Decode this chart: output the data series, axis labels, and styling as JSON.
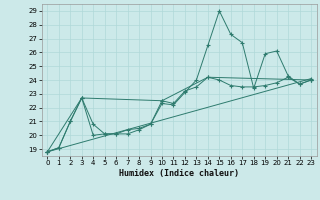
{
  "title": "",
  "xlabel": "Humidex (Indice chaleur)",
  "ylabel": "",
  "xlim": [
    -0.5,
    23.5
  ],
  "ylim": [
    18.5,
    29.5
  ],
  "xticks": [
    0,
    1,
    2,
    3,
    4,
    5,
    6,
    7,
    8,
    9,
    10,
    11,
    12,
    13,
    14,
    15,
    16,
    17,
    18,
    19,
    20,
    21,
    22,
    23
  ],
  "yticks": [
    19,
    20,
    21,
    22,
    23,
    24,
    25,
    26,
    27,
    28,
    29
  ],
  "bg_color": "#cce9e9",
  "line_color": "#2e7b6e",
  "grid_color": "#b0d8d8",
  "lines": [
    {
      "x": [
        0,
        1,
        2,
        3,
        4,
        5,
        6,
        7,
        8,
        9,
        10,
        11,
        12,
        13,
        14,
        15,
        16,
        17,
        18,
        19,
        20,
        21,
        22,
        23
      ],
      "y": [
        18.8,
        19.1,
        21.0,
        22.7,
        20.0,
        20.1,
        20.1,
        20.4,
        20.5,
        20.8,
        22.3,
        22.2,
        23.1,
        24.0,
        26.5,
        29.0,
        27.3,
        26.7,
        23.4,
        25.9,
        26.1,
        24.3,
        23.7,
        24.0
      ]
    },
    {
      "x": [
        0,
        1,
        2,
        3,
        4,
        5,
        6,
        7,
        8,
        9,
        10,
        11,
        12,
        13,
        14,
        15,
        16,
        17,
        18,
        19,
        20,
        21,
        22,
        23
      ],
      "y": [
        18.8,
        19.1,
        21.0,
        22.7,
        20.8,
        20.1,
        20.1,
        20.1,
        20.4,
        20.8,
        22.5,
        22.3,
        23.2,
        23.5,
        24.2,
        24.0,
        23.6,
        23.5,
        23.5,
        23.6,
        23.8,
        24.2,
        23.7,
        24.0
      ]
    },
    {
      "x": [
        0,
        23
      ],
      "y": [
        18.8,
        24.1
      ]
    },
    {
      "x": [
        0,
        3,
        10,
        14,
        23
      ],
      "y": [
        18.8,
        22.7,
        22.5,
        24.2,
        24.0
      ]
    }
  ]
}
